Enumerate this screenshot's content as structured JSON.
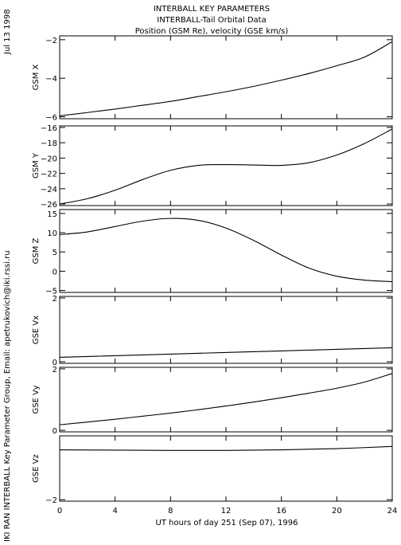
{
  "header": {
    "line1": "INTERBALL KEY PARAMETERS",
    "line2": "INTERBALL-Tail Orbital Data",
    "line3": "Position (GSM Re), velocity (GSE km/s)"
  },
  "side": {
    "date": "Jul 13 1998",
    "credit": "IKI RAN INTERBALL Key Parameter Group, Email: apetrukovich@iki.rssi.ru"
  },
  "chart_data": {
    "type": "line",
    "xlabel": "UT hours of day 251 (Sep 07), 1996",
    "xlim": [
      0,
      24
    ],
    "xticks": [
      0,
      4,
      8,
      12,
      16,
      20,
      24
    ],
    "panels": [
      {
        "ylabel": "GSM X",
        "ylim": [
          -6.1,
          -1.8
        ],
        "yticks": [
          -6,
          -4,
          -2
        ],
        "x": [
          0,
          2,
          4,
          6,
          8,
          10,
          12,
          14,
          16,
          18,
          20,
          22,
          24
        ],
        "y": [
          -5.95,
          -5.78,
          -5.6,
          -5.4,
          -5.2,
          -4.95,
          -4.7,
          -4.42,
          -4.1,
          -3.75,
          -3.35,
          -2.9,
          -2.1
        ]
      },
      {
        "ylabel": "GSM Y",
        "ylim": [
          -26.2,
          -15.8
        ],
        "yticks": [
          -26,
          -24,
          -22,
          -20,
          -18,
          -16
        ],
        "x": [
          0,
          2,
          4,
          6,
          8,
          10,
          12,
          14,
          16,
          18,
          20,
          22,
          24
        ],
        "y": [
          -26.0,
          -25.3,
          -24.2,
          -22.8,
          -21.6,
          -20.95,
          -20.85,
          -20.9,
          -20.95,
          -20.6,
          -19.6,
          -18.1,
          -16.2
        ]
      },
      {
        "ylabel": "GSM Z",
        "ylim": [
          -5.5,
          16.0
        ],
        "yticks": [
          -5,
          0,
          5,
          10,
          15
        ],
        "x": [
          0,
          2,
          4,
          6,
          8,
          10,
          12,
          14,
          16,
          18,
          20,
          22,
          24
        ],
        "y": [
          9.5,
          10.2,
          11.6,
          13.0,
          13.7,
          13.2,
          11.2,
          8.0,
          4.2,
          0.8,
          -1.3,
          -2.3,
          -2.7
        ]
      },
      {
        "ylabel": "GSE Vx",
        "ylim": [
          -0.05,
          2.05
        ],
        "yticks": [
          0,
          2
        ],
        "x": [
          0,
          4,
          8,
          12,
          16,
          20,
          24
        ],
        "y": [
          0.14,
          0.19,
          0.24,
          0.29,
          0.34,
          0.39,
          0.44
        ]
      },
      {
        "ylabel": "GSE Vy",
        "ylim": [
          -0.05,
          2.05
        ],
        "yticks": [
          0,
          2
        ],
        "x": [
          0,
          2,
          4,
          6,
          8,
          10,
          12,
          14,
          16,
          18,
          20,
          22,
          24
        ],
        "y": [
          0.18,
          0.27,
          0.36,
          0.46,
          0.56,
          0.67,
          0.79,
          0.92,
          1.06,
          1.21,
          1.37,
          1.57,
          1.85
        ]
      },
      {
        "ylabel": "GSE Vz",
        "ylim": [
          -2.05,
          0.1
        ],
        "yticks": [
          -2
        ],
        "x": [
          0,
          4,
          8,
          12,
          16,
          20,
          24
        ],
        "y": [
          -0.36,
          -0.37,
          -0.38,
          -0.38,
          -0.36,
          -0.32,
          -0.25
        ]
      }
    ]
  }
}
